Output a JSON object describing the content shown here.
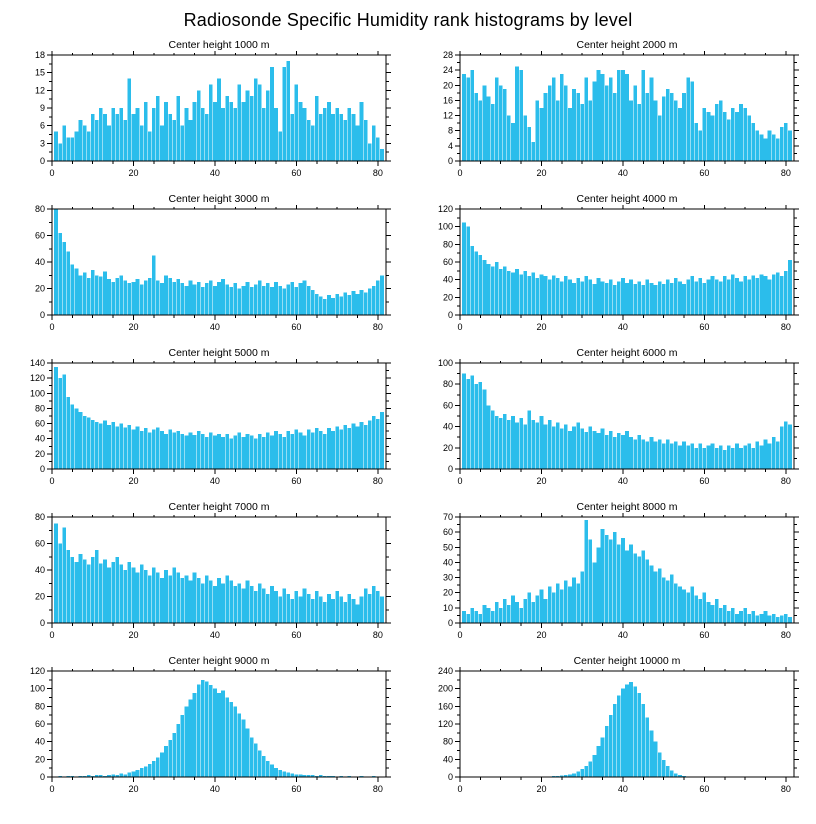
{
  "page": {
    "title": "Radiosonde Specific Humidity rank histograms by level"
  },
  "style": {
    "bar_color": "#2BBDEB",
    "axis_color": "#000000"
  },
  "chart_data": [
    {
      "type": "bar",
      "title": "Center height 1000 m",
      "xlabel": "",
      "ylabel": "",
      "xlim": [
        0,
        82
      ],
      "xticks": [
        0,
        20,
        40,
        60,
        80
      ],
      "ylim": [
        0,
        18
      ],
      "ytick_step": 3,
      "values": [
        5,
        3,
        6,
        4,
        4,
        5,
        7,
        6,
        5,
        8,
        7,
        9,
        8,
        6,
        9,
        8,
        9,
        7,
        14,
        8,
        9,
        6,
        10,
        5,
        9,
        11,
        6,
        10,
        8,
        7,
        11,
        6,
        9,
        7,
        10,
        12,
        9,
        8,
        13,
        10,
        14,
        9,
        11,
        10,
        9,
        13,
        10,
        12,
        11,
        14,
        13,
        9,
        12,
        16,
        9,
        5,
        16,
        17,
        8,
        13,
        10,
        9,
        7,
        6,
        11,
        8,
        9,
        10,
        8,
        9,
        8,
        7,
        9,
        8,
        6,
        10,
        7,
        3,
        6,
        4,
        2
      ]
    },
    {
      "type": "bar",
      "title": "Center height 2000 m",
      "xlabel": "",
      "ylabel": "",
      "xlim": [
        0,
        82
      ],
      "xticks": [
        0,
        20,
        40,
        60,
        80
      ],
      "ylim": [
        0,
        28
      ],
      "ytick_step": 4,
      "values": [
        23,
        22,
        24,
        18,
        16,
        20,
        17,
        15,
        22,
        20,
        19,
        12,
        10,
        25,
        24,
        12,
        9,
        5,
        16,
        14,
        18,
        20,
        22,
        16,
        23,
        20,
        14,
        19,
        18,
        15,
        22,
        16,
        21,
        24,
        23,
        20,
        22,
        18,
        24,
        24,
        23,
        16,
        20,
        15,
        24,
        18,
        22,
        16,
        12,
        17,
        19,
        18,
        16,
        14,
        18,
        22,
        21,
        10,
        8,
        14,
        13,
        12,
        15,
        16,
        13,
        11,
        14,
        13,
        15,
        14,
        12,
        10,
        8,
        7,
        6,
        8,
        7,
        6,
        9,
        10,
        8
      ]
    },
    {
      "type": "bar",
      "title": "Center height 3000 m",
      "xlabel": "",
      "ylabel": "",
      "xlim": [
        0,
        82
      ],
      "xticks": [
        0,
        20,
        40,
        60,
        80
      ],
      "ylim": [
        0,
        80
      ],
      "ytick_step": 20,
      "values": [
        80,
        62,
        55,
        48,
        38,
        35,
        30,
        32,
        28,
        34,
        30,
        29,
        33,
        27,
        25,
        28,
        30,
        26,
        24,
        25,
        27,
        23,
        26,
        28,
        45,
        26,
        24,
        30,
        28,
        25,
        27,
        24,
        22,
        26,
        23,
        25,
        21,
        24,
        26,
        22,
        25,
        27,
        23,
        21,
        24,
        20,
        22,
        25,
        21,
        23,
        26,
        22,
        24,
        21,
        25,
        22,
        20,
        23,
        25,
        21,
        24,
        26,
        22,
        19,
        16,
        14,
        12,
        15,
        13,
        16,
        14,
        17,
        15,
        18,
        16,
        19,
        17,
        20,
        22,
        26,
        30
      ]
    },
    {
      "type": "bar",
      "title": "Center height 4000 m",
      "xlabel": "",
      "ylabel": "",
      "xlim": [
        0,
        82
      ],
      "xticks": [
        0,
        20,
        40,
        60,
        80
      ],
      "ylim": [
        0,
        120
      ],
      "ytick_step": 20,
      "values": [
        105,
        100,
        78,
        72,
        68,
        62,
        58,
        55,
        60,
        52,
        55,
        50,
        48,
        52,
        46,
        50,
        44,
        48,
        42,
        46,
        44,
        40,
        45,
        42,
        38,
        44,
        40,
        36,
        42,
        38,
        44,
        40,
        35,
        42,
        38,
        36,
        40,
        34,
        38,
        42,
        36,
        40,
        35,
        38,
        34,
        40,
        36,
        34,
        38,
        35,
        40,
        36,
        42,
        38,
        35,
        40,
        44,
        38,
        42,
        36,
        40,
        44,
        40,
        38,
        44,
        40,
        46,
        42,
        38,
        44,
        40,
        45,
        42,
        46,
        44,
        40,
        46,
        48,
        44,
        50,
        62
      ]
    },
    {
      "type": "bar",
      "title": "Center height 5000 m",
      "xlabel": "",
      "ylabel": "",
      "xlim": [
        0,
        82
      ],
      "xticks": [
        0,
        20,
        40,
        60,
        80
      ],
      "ylim": [
        0,
        140
      ],
      "ytick_step": 20,
      "values": [
        135,
        120,
        125,
        95,
        85,
        80,
        75,
        70,
        68,
        65,
        62,
        60,
        64,
        58,
        62,
        56,
        60,
        55,
        58,
        52,
        56,
        50,
        54,
        48,
        52,
        55,
        50,
        46,
        52,
        48,
        50,
        46,
        44,
        48,
        45,
        50,
        46,
        42,
        48,
        44,
        46,
        42,
        46,
        40,
        44,
        48,
        42,
        46,
        44,
        40,
        46,
        42,
        48,
        44,
        50,
        46,
        42,
        50,
        46,
        52,
        48,
        44,
        52,
        48,
        54,
        50,
        46,
        54,
        50,
        56,
        52,
        58,
        54,
        60,
        56,
        62,
        58,
        64,
        70,
        66,
        75
      ]
    },
    {
      "type": "bar",
      "title": "Center height 6000 m",
      "xlabel": "",
      "ylabel": "",
      "xlim": [
        0,
        82
      ],
      "xticks": [
        0,
        20,
        40,
        60,
        80
      ],
      "ylim": [
        0,
        100
      ],
      "ytick_step": 20,
      "values": [
        90,
        85,
        88,
        80,
        82,
        75,
        60,
        55,
        50,
        48,
        52,
        46,
        50,
        44,
        48,
        42,
        55,
        46,
        44,
        50,
        42,
        46,
        40,
        44,
        38,
        42,
        36,
        40,
        44,
        38,
        35,
        40,
        36,
        34,
        38,
        32,
        36,
        30,
        34,
        32,
        36,
        30,
        28,
        32,
        28,
        26,
        30,
        26,
        28,
        24,
        28,
        24,
        26,
        22,
        26,
        22,
        24,
        20,
        24,
        20,
        22,
        24,
        20,
        22,
        18,
        22,
        20,
        24,
        20,
        22,
        24,
        20,
        26,
        22,
        28,
        24,
        30,
        26,
        40,
        45,
        42
      ]
    },
    {
      "type": "bar",
      "title": "Center height 7000 m",
      "xlabel": "",
      "ylabel": "",
      "xlim": [
        0,
        82
      ],
      "xticks": [
        0,
        20,
        40,
        60,
        80
      ],
      "ylim": [
        0,
        80
      ],
      "ytick_step": 20,
      "values": [
        75,
        60,
        72,
        55,
        50,
        46,
        52,
        48,
        44,
        50,
        55,
        45,
        48,
        42,
        46,
        50,
        44,
        40,
        46,
        42,
        38,
        44,
        40,
        36,
        42,
        38,
        34,
        40,
        36,
        42,
        38,
        34,
        36,
        32,
        38,
        34,
        30,
        36,
        32,
        28,
        34,
        30,
        36,
        32,
        28,
        30,
        26,
        32,
        28,
        24,
        30,
        26,
        22,
        28,
        24,
        20,
        26,
        22,
        18,
        24,
        20,
        26,
        22,
        18,
        24,
        20,
        16,
        22,
        18,
        24,
        20,
        16,
        22,
        18,
        14,
        20,
        26,
        22,
        28,
        24,
        20
      ]
    },
    {
      "type": "bar",
      "title": "Center height 8000 m",
      "xlabel": "",
      "ylabel": "",
      "xlim": [
        0,
        82
      ],
      "xticks": [
        0,
        20,
        40,
        60,
        80
      ],
      "ylim": [
        0,
        70
      ],
      "ytick_step": 10,
      "values": [
        8,
        6,
        10,
        8,
        6,
        12,
        10,
        8,
        14,
        10,
        16,
        12,
        18,
        14,
        10,
        16,
        20,
        14,
        18,
        22,
        16,
        24,
        20,
        26,
        22,
        28,
        24,
        30,
        26,
        34,
        68,
        55,
        40,
        50,
        62,
        58,
        55,
        60,
        52,
        56,
        48,
        52,
        46,
        44,
        48,
        42,
        38,
        34,
        36,
        30,
        28,
        32,
        26,
        24,
        22,
        20,
        24,
        18,
        16,
        20,
        14,
        12,
        16,
        10,
        12,
        8,
        10,
        6,
        8,
        10,
        6,
        8,
        5,
        6,
        8,
        5,
        6,
        4,
        5,
        6,
        4
      ]
    },
    {
      "type": "bar",
      "title": "Center height 9000 m",
      "xlabel": "",
      "ylabel": "",
      "xlim": [
        0,
        82
      ],
      "xticks": [
        0,
        20,
        40,
        60,
        80
      ],
      "ylim": [
        0,
        120
      ],
      "ytick_step": 20,
      "values": [
        0,
        1,
        0,
        1,
        1,
        0,
        1,
        1,
        2,
        1,
        2,
        2,
        1,
        2,
        3,
        2,
        4,
        3,
        5,
        6,
        8,
        10,
        12,
        15,
        18,
        22,
        28,
        35,
        42,
        50,
        60,
        70,
        80,
        88,
        95,
        105,
        110,
        108,
        104,
        100,
        95,
        98,
        90,
        85,
        80,
        72,
        65,
        55,
        45,
        38,
        30,
        24,
        18,
        14,
        10,
        8,
        6,
        5,
        4,
        3,
        3,
        2,
        2,
        2,
        1,
        2,
        1,
        1,
        1,
        0,
        1,
        0,
        1,
        0,
        0,
        1,
        0,
        0,
        1,
        0,
        0
      ]
    },
    {
      "type": "bar",
      "title": "Center height 10000 m",
      "xlabel": "",
      "ylabel": "",
      "xlim": [
        0,
        82
      ],
      "xticks": [
        0,
        20,
        40,
        60,
        80
      ],
      "ylim": [
        0,
        240
      ],
      "ytick_step": 40,
      "values": [
        0,
        0,
        0,
        0,
        0,
        0,
        0,
        0,
        0,
        0,
        0,
        0,
        0,
        0,
        0,
        0,
        0,
        0,
        0,
        0,
        1,
        1,
        2,
        2,
        3,
        4,
        6,
        8,
        12,
        18,
        25,
        35,
        50,
        70,
        90,
        115,
        140,
        165,
        185,
        200,
        210,
        215,
        205,
        190,
        165,
        135,
        105,
        80,
        55,
        38,
        25,
        15,
        8,
        4,
        2,
        1,
        1,
        0,
        0,
        0,
        0,
        0,
        0,
        0,
        0,
        0,
        0,
        0,
        0,
        0,
        0,
        0,
        0,
        0,
        0,
        0,
        0,
        0,
        0,
        0,
        0
      ]
    }
  ]
}
